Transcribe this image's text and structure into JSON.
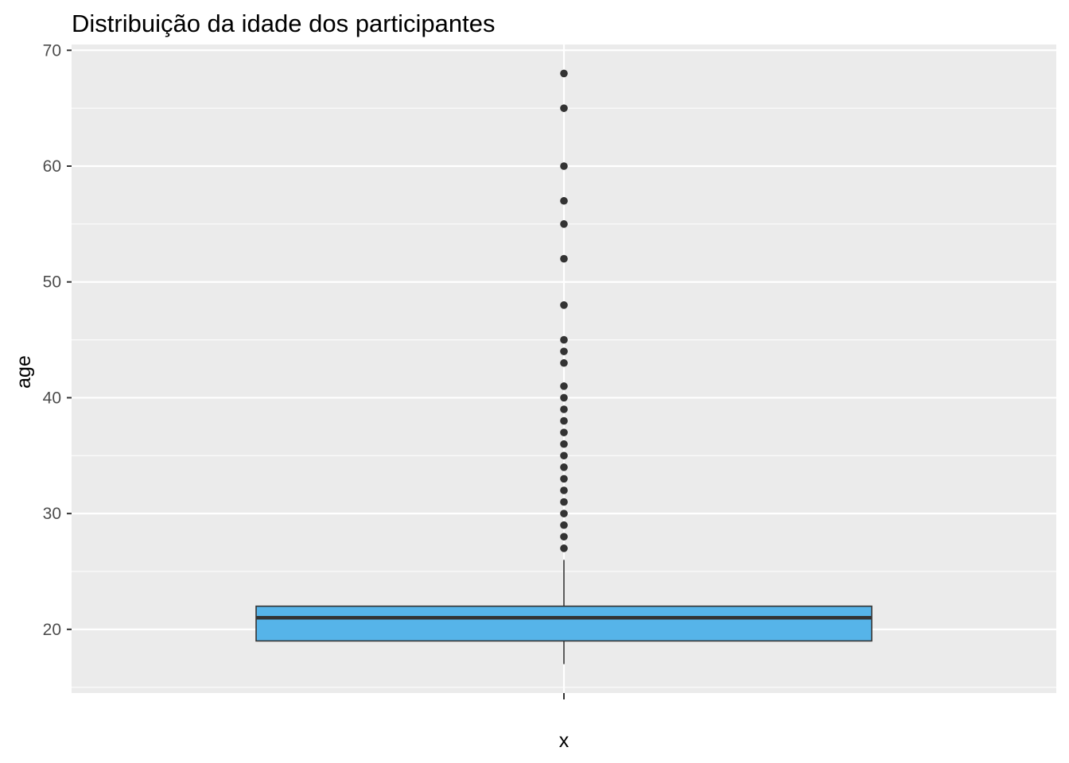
{
  "chart_data": {
    "type": "boxplot",
    "title": "Distribuição da idade dos participantes",
    "xlabel": "x",
    "ylabel": "age",
    "ylim": [
      14.5,
      70.5
    ],
    "y_ticks": [
      20,
      30,
      40,
      50,
      60,
      70
    ],
    "x_ticks": [
      ""
    ],
    "grid": true,
    "box_fill": "#56b4e9",
    "box_stroke": "#333333",
    "panel_background": "#ebebeb",
    "box": {
      "q1": 19,
      "median": 21,
      "q3": 22,
      "whisker_low": 17,
      "whisker_high": 26
    },
    "outliers": [
      27,
      28,
      29,
      30,
      31,
      32,
      33,
      34,
      35,
      36,
      37,
      38,
      39,
      40,
      41,
      43,
      44,
      45,
      48,
      52,
      55,
      57,
      60,
      65,
      68
    ]
  }
}
